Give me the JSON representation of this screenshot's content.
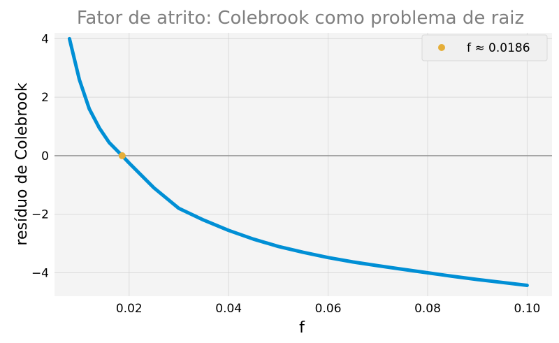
{
  "chart_data": {
    "type": "line",
    "title": "Fator de atrito: Colebrook como problema de raiz",
    "xlabel": "f",
    "ylabel": "resíduo de Colebrook",
    "xlim": [
      0.005,
      0.105
    ],
    "ylim": [
      -4.8,
      4.2
    ],
    "x_ticks": [
      0.02,
      0.04,
      0.06,
      0.08,
      0.1
    ],
    "x_tick_labels": [
      "0.02",
      "0.04",
      "0.06",
      "0.08",
      "0.10"
    ],
    "y_ticks": [
      4,
      2,
      0,
      -2,
      -4
    ],
    "y_tick_labels": [
      "4",
      "2",
      "0",
      "−2",
      "−4"
    ],
    "grid": true,
    "series": [
      {
        "x": [
          0.008,
          0.01,
          0.012,
          0.014,
          0.016,
          0.0186,
          0.02,
          0.025,
          0.03,
          0.035,
          0.04,
          0.045,
          0.05,
          0.055,
          0.06,
          0.065,
          0.07,
          0.075,
          0.08,
          0.085,
          0.09,
          0.095,
          0.1
        ],
        "y": [
          4.0,
          2.6,
          1.6,
          0.95,
          0.45,
          0.0,
          -0.25,
          -1.1,
          -1.8,
          -2.2,
          -2.55,
          -2.85,
          -3.1,
          -3.3,
          -3.48,
          -3.63,
          -3.76,
          -3.88,
          -4.0,
          -4.12,
          -4.23,
          -4.33,
          -4.43
        ],
        "color": "#008fd5"
      }
    ],
    "root_point": {
      "x": 0.0186,
      "y": 0.0,
      "color": "#e5ae38"
    },
    "zero_line": 0,
    "legend": {
      "position": "top-right",
      "entries": [
        {
          "label": "f ≈ 0.0186",
          "marker": "circle",
          "color": "#e5ae38"
        }
      ]
    }
  },
  "colors": {
    "background": "#f0f0f0",
    "grid": "#cbcbcb",
    "zero_line": "#999999",
    "title": "#7f7f7f"
  }
}
